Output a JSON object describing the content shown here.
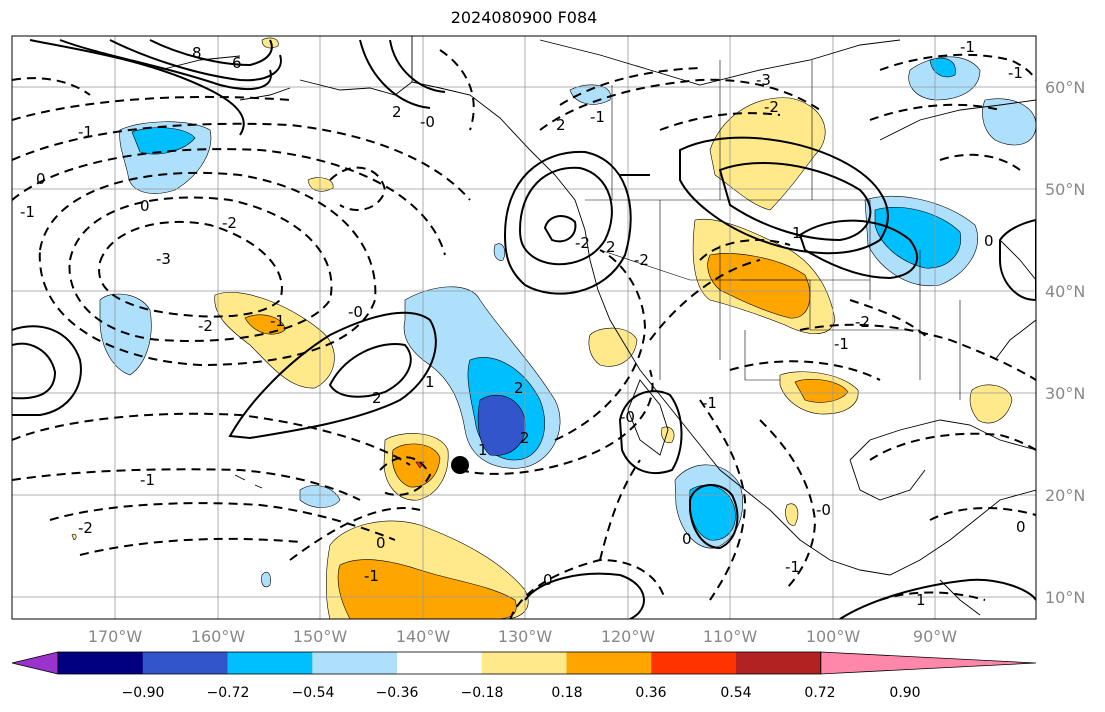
{
  "title": "2024080900 F084",
  "lat_labels": [
    "60°N",
    "50°N",
    "40°N",
    "30°N",
    "20°N",
    "10°N"
  ],
  "lon_labels": [
    "170°W",
    "160°W",
    "150°W",
    "140°W",
    "130°W",
    "120°W",
    "110°W",
    "100°W",
    "90°W"
  ],
  "colorbar": {
    "tick_labels": [
      "−0.90",
      "−0.72",
      "−0.54",
      "−0.36",
      "−0.18",
      "0.18",
      "0.36",
      "0.54",
      "0.72",
      "0.90"
    ],
    "colors": [
      "#9933cc",
      "#000080",
      "#3355cc",
      "#00bfff",
      "#aee0fb",
      "#ffffff",
      "#ffe98a",
      "#ffa500",
      "#ff3300",
      "#b22222",
      "#ff88aa"
    ]
  },
  "contour_labels": [
    {
      "text": "6"
    },
    {
      "text": "8"
    },
    {
      "text": "-1"
    },
    {
      "text": "0"
    },
    {
      "text": "-1"
    },
    {
      "text": "0"
    },
    {
      "text": "-2"
    },
    {
      "text": "-3"
    },
    {
      "text": "-2"
    },
    {
      "text": "-1"
    },
    {
      "text": "2"
    },
    {
      "text": "1"
    },
    {
      "text": "-0"
    },
    {
      "text": "2"
    },
    {
      "text": "2"
    },
    {
      "text": "1"
    },
    {
      "text": "-1"
    },
    {
      "text": "-2"
    },
    {
      "text": "2"
    },
    {
      "text": "-2"
    },
    {
      "text": "2"
    },
    {
      "text": "-2"
    },
    {
      "text": "2"
    },
    {
      "text": "-0"
    },
    {
      "text": "-1"
    },
    {
      "text": "-0"
    },
    {
      "text": "-1"
    },
    {
      "text": "-0"
    },
    {
      "text": "-1"
    },
    {
      "text": "0"
    },
    {
      "text": "0"
    },
    {
      "text": "0"
    },
    {
      "text": "-1"
    },
    {
      "text": "1"
    },
    {
      "text": "-3"
    },
    {
      "text": "-2"
    },
    {
      "text": "-1"
    },
    {
      "text": "0"
    },
    {
      "text": "-1"
    },
    {
      "text": "1"
    },
    {
      "text": "-2"
    },
    {
      "text": "-1"
    },
    {
      "text": "0"
    }
  ],
  "marker": "storm-center-dot"
}
